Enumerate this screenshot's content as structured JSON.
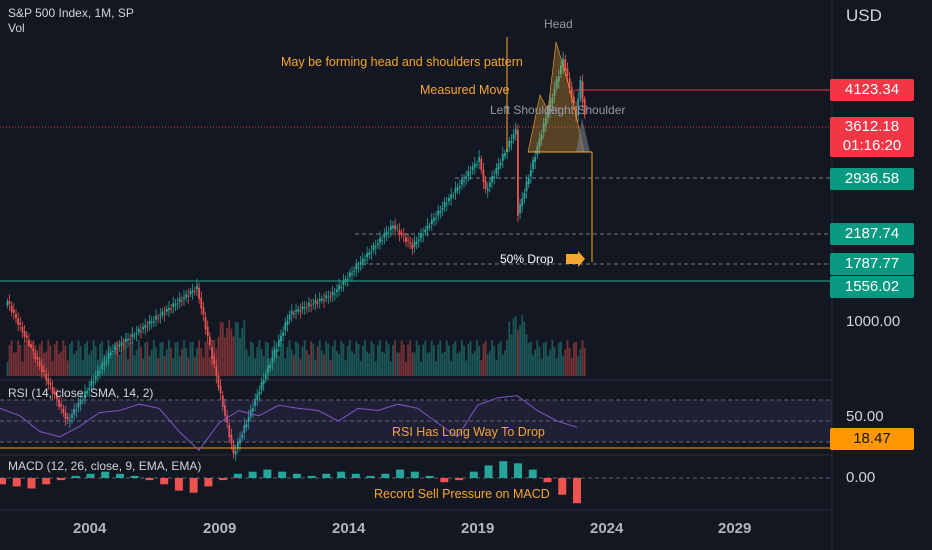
{
  "chart_data": {
    "type": "candlestick",
    "symbol_header": "S&P 500 Index, 1M, SP",
    "volume_label": "Vol",
    "currency": "USD",
    "price_axis": {
      "labels": [
        "1000.00"
      ]
    },
    "x_axis_labels": [
      "2004",
      "2009",
      "2014",
      "2019",
      "2024",
      "2029"
    ],
    "price_tags": [
      {
        "value": "4123.34",
        "color": "#f23645"
      },
      {
        "value": "3612.18",
        "color": "#f23645",
        "countdown": "01:16:20"
      },
      {
        "value": "2936.58",
        "color": "#089981"
      },
      {
        "value": "2187.74",
        "color": "#089981"
      },
      {
        "value": "1787.77",
        "color": "#089981"
      },
      {
        "value": "1556.02",
        "color": "#089981"
      }
    ],
    "price_series_approx": [
      {
        "x": "2000-06",
        "y": 1450
      },
      {
        "x": "2002-10",
        "y": 800
      },
      {
        "x": "2004-06",
        "y": 1130
      },
      {
        "x": "2007-10",
        "y": 1550
      },
      {
        "x": "2009-03",
        "y": 680
      },
      {
        "x": "2011-05",
        "y": 1360
      },
      {
        "x": "2013-01",
        "y": 1500
      },
      {
        "x": "2015-05",
        "y": 2110
      },
      {
        "x": "2016-02",
        "y": 1900
      },
      {
        "x": "2018-09",
        "y": 2930
      },
      {
        "x": "2018-12",
        "y": 2500
      },
      {
        "x": "2020-02",
        "y": 3380
      },
      {
        "x": "2020-03",
        "y": 2240
      },
      {
        "x": "2021-12",
        "y": 4800
      },
      {
        "x": "2022-06",
        "y": 3640
      },
      {
        "x": "2022-08",
        "y": 4300
      },
      {
        "x": "2022-10",
        "y": 3612
      }
    ],
    "annotations": {
      "head": "Head",
      "pattern": "May be forming head and shoulders pattern",
      "measured_move": "Measured Move",
      "left_shoulder": "Left Shoulder",
      "right_shoulder": "Right Shoulder",
      "drop": "50% Drop",
      "rsi_note": "RSI Has Long Way To Drop",
      "macd_note": "Record Sell Pressure on MACD"
    },
    "rsi": {
      "title": "RSI (14, close, SMA, 14, 2)",
      "value_label": "50.00",
      "tag": "18.47",
      "tag_color": "#ff9800",
      "series_approx": [
        62,
        55,
        40,
        35,
        45,
        58,
        60,
        66,
        62,
        40,
        22,
        48,
        60,
        55,
        65,
        62,
        60,
        50,
        62,
        60,
        66,
        62,
        48,
        35,
        65,
        72,
        74,
        60,
        50,
        44
      ]
    },
    "macd": {
      "title": "MACD (12, 26, close, 9, EMA, EMA)",
      "value_label": "0.00",
      "histogram_approx": [
        -3,
        -4,
        -5,
        -3,
        -1,
        1,
        2,
        3,
        2,
        1,
        -1,
        -3,
        -6,
        -7,
        -4,
        -1,
        2,
        3,
        4,
        3,
        2,
        1,
        2,
        3,
        2,
        1,
        2,
        4,
        3,
        1,
        -2,
        -1,
        3,
        6,
        8,
        7,
        4,
        -2,
        -8,
        -12
      ]
    }
  }
}
